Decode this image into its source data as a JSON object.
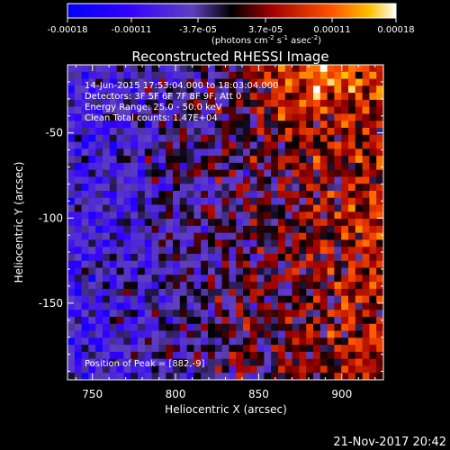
{
  "colorbar": {
    "ticks": [
      "-0.00018",
      "-0.00011",
      "-3.7e-05",
      "3.7e-05",
      "0.00011",
      "0.00018"
    ],
    "unit_text": "(photons cm",
    "unit_sup1": "-2",
    "unit_mid": " s",
    "unit_sup2": "-1",
    "unit_end": " asec",
    "unit_sup3": "-2",
    "unit_close": ")"
  },
  "info": {
    "time_range": "14-Jun-2015 17:53:04.000 to 18:03:04.000",
    "detectors": "Detectors: 3F 5F 6F 7F 8F 9F, Att 0",
    "energy": "Energy Range: 25.0 - 50.0 keV",
    "clean": "Clean     Total counts: 1.47E+04",
    "peak": "Position of Peak = [882,-9]"
  },
  "footer": {
    "timestamp": "21-Nov-2017 20:42"
  },
  "chart_data": {
    "type": "heatmap",
    "title": "Reconstructed RHESSI Image",
    "xlabel": "Heliocentric X (arcsec)",
    "ylabel": "Heliocentric Y (arcsec)",
    "xlim": [
      735,
      925
    ],
    "ylim": [
      -195,
      -10
    ],
    "x_ticks": [
      750,
      800,
      850,
      900
    ],
    "y_ticks": [
      -50,
      -100,
      -150
    ],
    "x_tick_labels": [
      "750",
      "800",
      "850",
      "900"
    ],
    "y_tick_labels": [
      "-50",
      "-100",
      "-150"
    ],
    "colorscale_range": [
      -0.00018,
      0.00018
    ],
    "colormap": "blue-purple-red-yellow-white",
    "peak_position": [
      882,
      -9
    ]
  }
}
